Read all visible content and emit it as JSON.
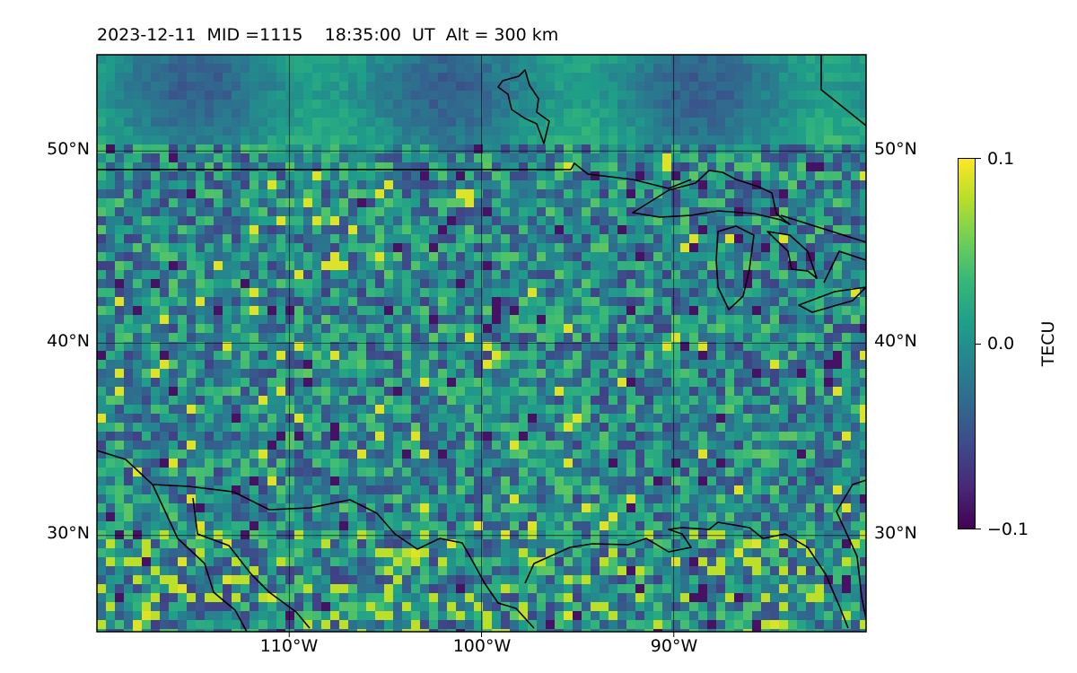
{
  "title": {
    "date": "2023-12-11",
    "mid": "MID =1115",
    "time": "18:35:00  UT",
    "alt": "Alt = 300 km"
  },
  "map": {
    "extent": {
      "lon_min": -120,
      "lon_max": -80,
      "lat_min": 25,
      "lat_max": 55
    },
    "lat_ticks": [
      {
        "value": 50,
        "label": "50°N"
      },
      {
        "value": 40,
        "label": "40°N"
      },
      {
        "value": 30,
        "label": "30°N"
      }
    ],
    "lon_ticks": [
      {
        "value": -110,
        "label": "110°W"
      },
      {
        "value": -100,
        "label": "100°W"
      },
      {
        "value": -90,
        "label": "90°W"
      }
    ],
    "colormap": "viridis",
    "coastline_color": "#000000"
  },
  "colorbar": {
    "label": "TECU",
    "min": -0.1,
    "max": 0.1,
    "ticks": [
      {
        "value": 0.1,
        "label": "0.1"
      },
      {
        "value": 0.0,
        "label": "0.0"
      },
      {
        "value": -0.1,
        "label": "−0.1"
      }
    ]
  }
}
